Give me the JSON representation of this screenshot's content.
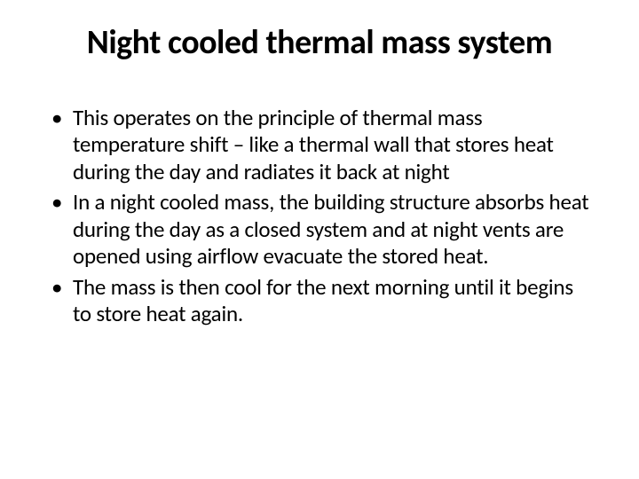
{
  "slide": {
    "title": "Night cooled thermal mass system",
    "bullets": [
      "This operates on the principle of thermal mass temperature shift – like a thermal wall that stores heat during the day and radiates it back at night",
      "In a night cooled mass, the building structure absorbs heat during the day as a closed system and at night vents are opened using airflow evacuate the stored heat.",
      "The mass is then cool for the next morning until it begins to store heat again."
    ]
  },
  "style": {
    "background_color": "#ffffff",
    "text_color": "#000000",
    "title_fontsize": 38,
    "title_fontweight": 700,
    "body_fontsize": 25,
    "font_family": "Calibri, Arial, sans-serif"
  }
}
